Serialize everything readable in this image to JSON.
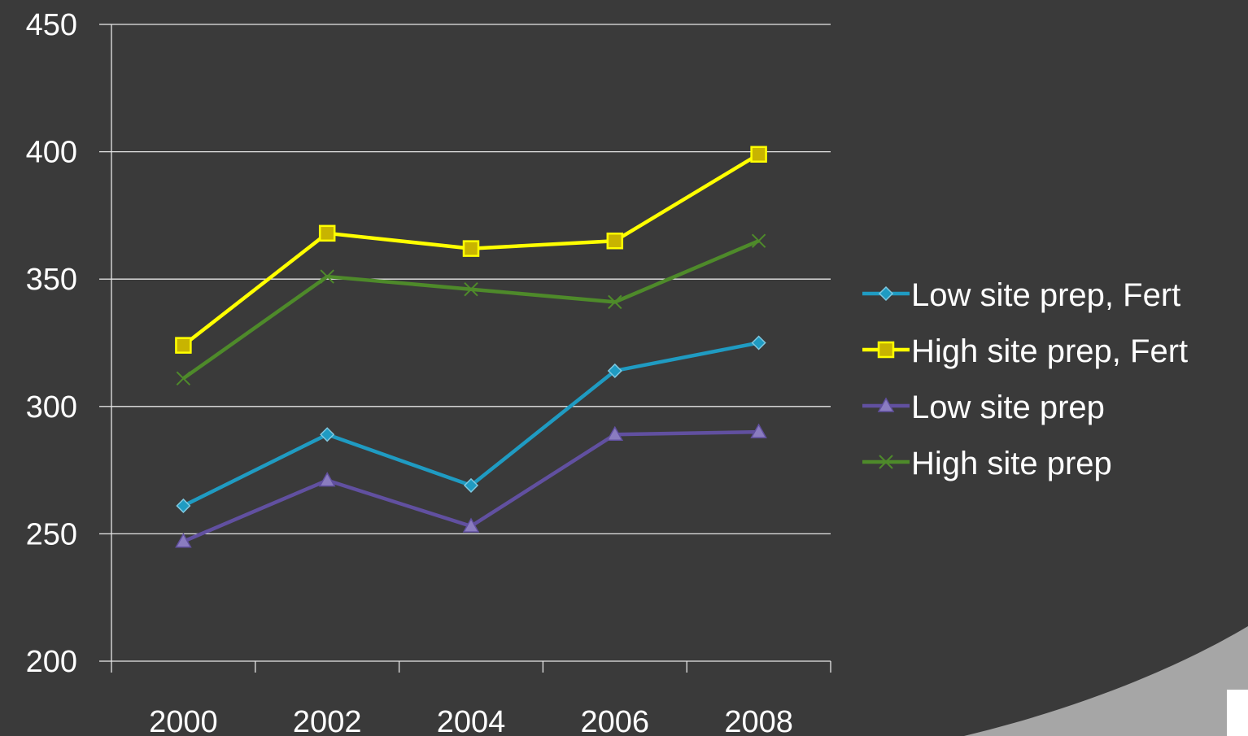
{
  "chart_data": {
    "type": "line",
    "title": "",
    "xlabel": "",
    "ylabel": "",
    "categories": [
      "2000",
      "2002",
      "2004",
      "2006",
      "2008"
    ],
    "ylim": [
      200,
      450
    ],
    "yticks": [
      200,
      250,
      300,
      350,
      400,
      450
    ],
    "grid": true,
    "legend_position": "right",
    "series": [
      {
        "name": "Low site prep, Fert",
        "color": "#1f9bc2",
        "marker": "diamond",
        "values": [
          261,
          289,
          269,
          314,
          325
        ]
      },
      {
        "name": "High site prep, Fert",
        "color": "#ffff00",
        "marker_fill": "#c8b400",
        "marker": "square",
        "values": [
          324,
          368,
          362,
          365,
          399
        ]
      },
      {
        "name": "Low site prep",
        "color": "#6150a0",
        "marker": "triangle",
        "values": [
          247,
          271,
          253,
          289,
          290
        ]
      },
      {
        "name": "High site prep",
        "color": "#4e8a2a",
        "marker": "x",
        "values": [
          311,
          351,
          346,
          341,
          365
        ]
      }
    ]
  },
  "colors": {
    "background": "#3a3a3a",
    "gridline": "#e6e6e6",
    "axis": "#e6e6e6",
    "text": "#ffffff",
    "corner_decoration": "#a6a6a6"
  }
}
